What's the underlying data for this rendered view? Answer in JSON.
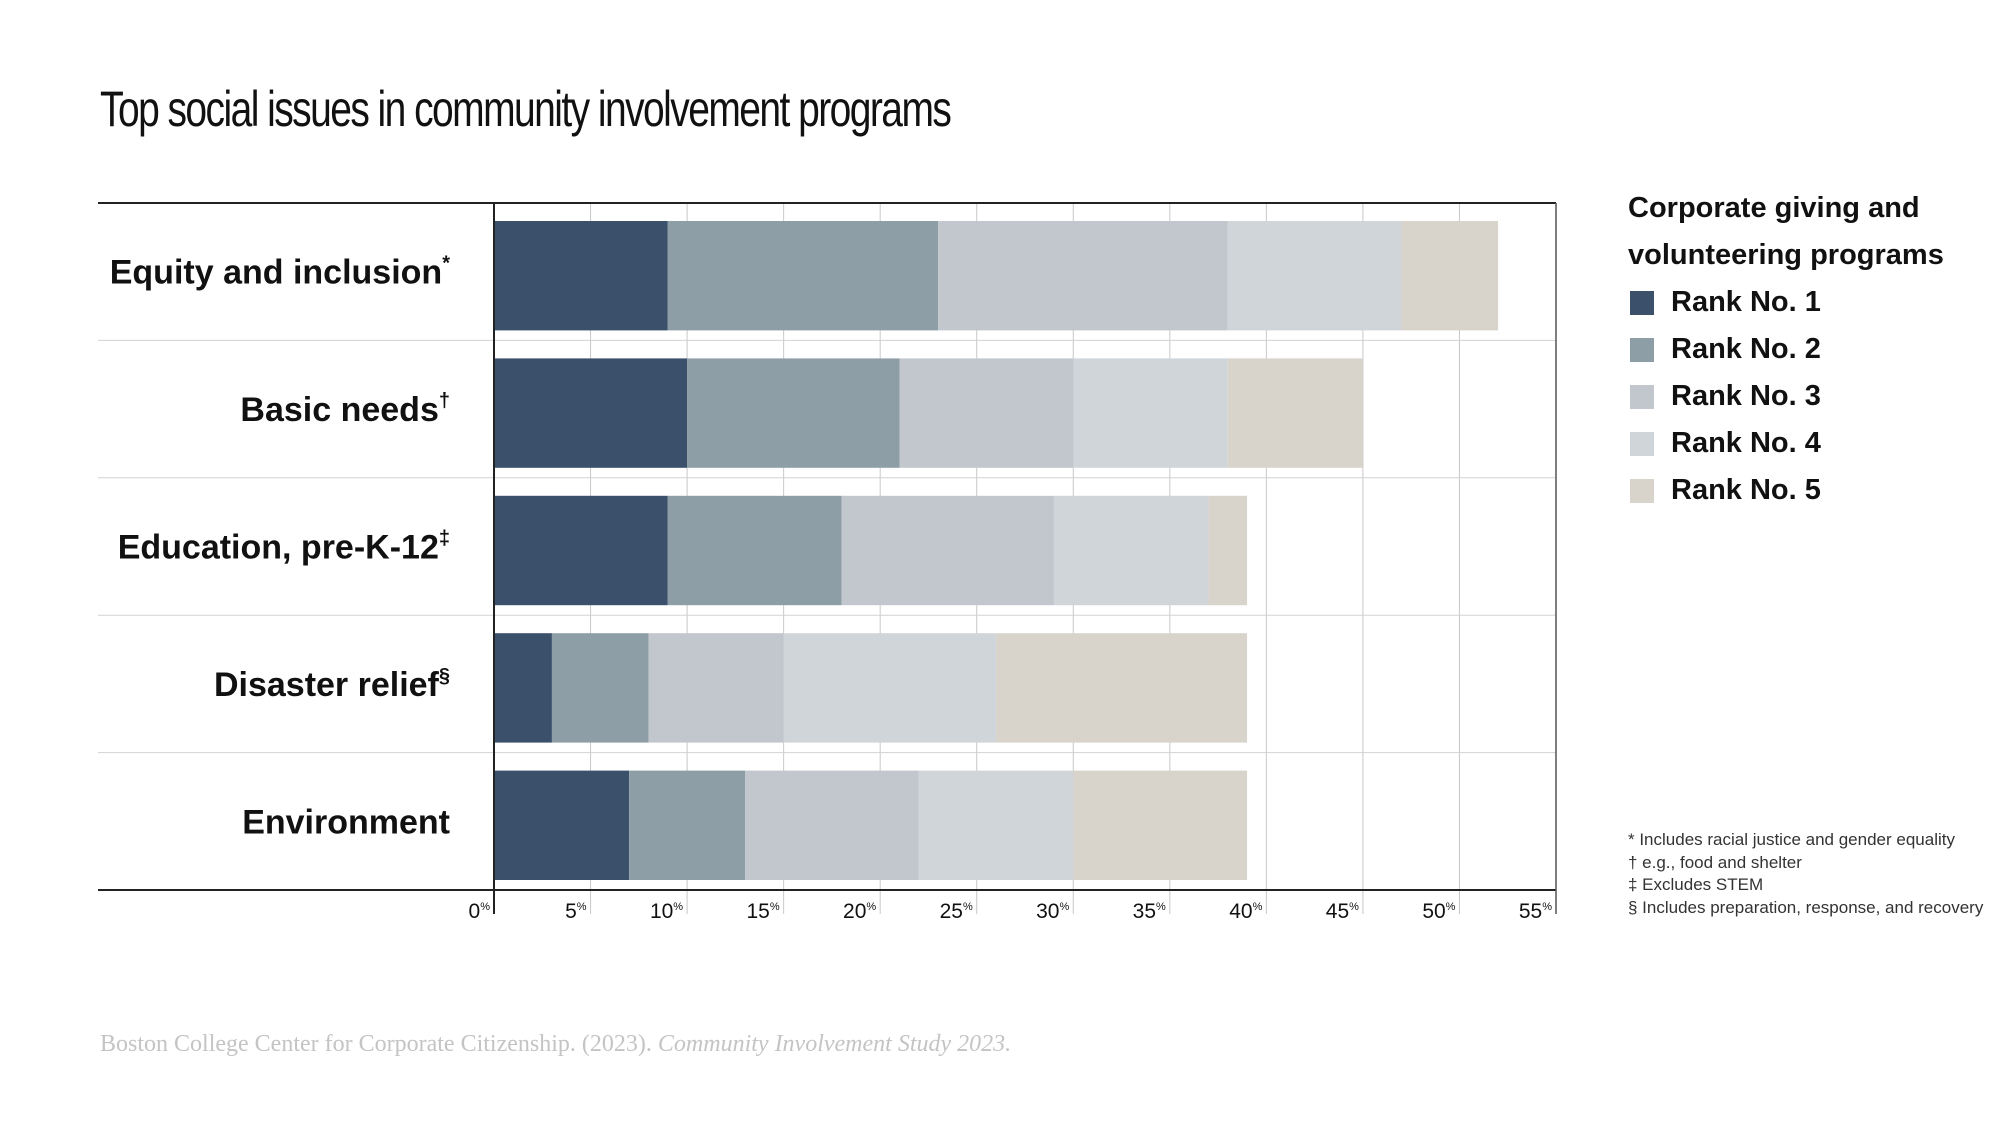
{
  "chart_data": {
    "type": "bar",
    "orientation": "horizontal",
    "stacked": true,
    "title": "Top social issues in community involvement programs",
    "categories": [
      "Equity and inclusion",
      "Basic needs",
      "Education, pre-K-12",
      "Disaster relief",
      "Environment"
    ],
    "category_marks": [
      "*",
      "†",
      "‡",
      "§",
      ""
    ],
    "series": [
      {
        "name": "Rank No. 1",
        "color": "#3a506b",
        "values": [
          9,
          10,
          9,
          3,
          7
        ]
      },
      {
        "name": "Rank No. 2",
        "color": "#8e9ea7",
        "values": [
          14,
          11,
          9,
          5,
          6
        ]
      },
      {
        "name": "Rank No. 3",
        "color": "#c1c7cd",
        "values": [
          15,
          9,
          11,
          7,
          9
        ]
      },
      {
        "name": "Rank No. 4",
        "color": "#d0d5d9",
        "values": [
          9,
          8,
          8,
          11,
          8
        ]
      },
      {
        "name": "Rank No. 5",
        "color": "#d8d4cc",
        "values": [
          5,
          7,
          2,
          13,
          9
        ]
      }
    ],
    "xlim": [
      0,
      55
    ],
    "xticks": [
      0,
      5,
      10,
      15,
      20,
      25,
      30,
      35,
      40,
      45,
      50,
      55
    ],
    "tick_suffix": "%",
    "grid": true,
    "legend_title": "Corporate giving and volunteering programs",
    "legend_position": "right"
  },
  "footnotes": [
    "* Includes racial justice and gender equality",
    "† e.g., food and shelter",
    "‡ Excludes STEM",
    "§ Includes preparation, response, and recovery"
  ],
  "source": {
    "text": "Boston College Center for Corporate Citizenship. (2023). ",
    "italic": "Community Involvement Study 2023."
  }
}
